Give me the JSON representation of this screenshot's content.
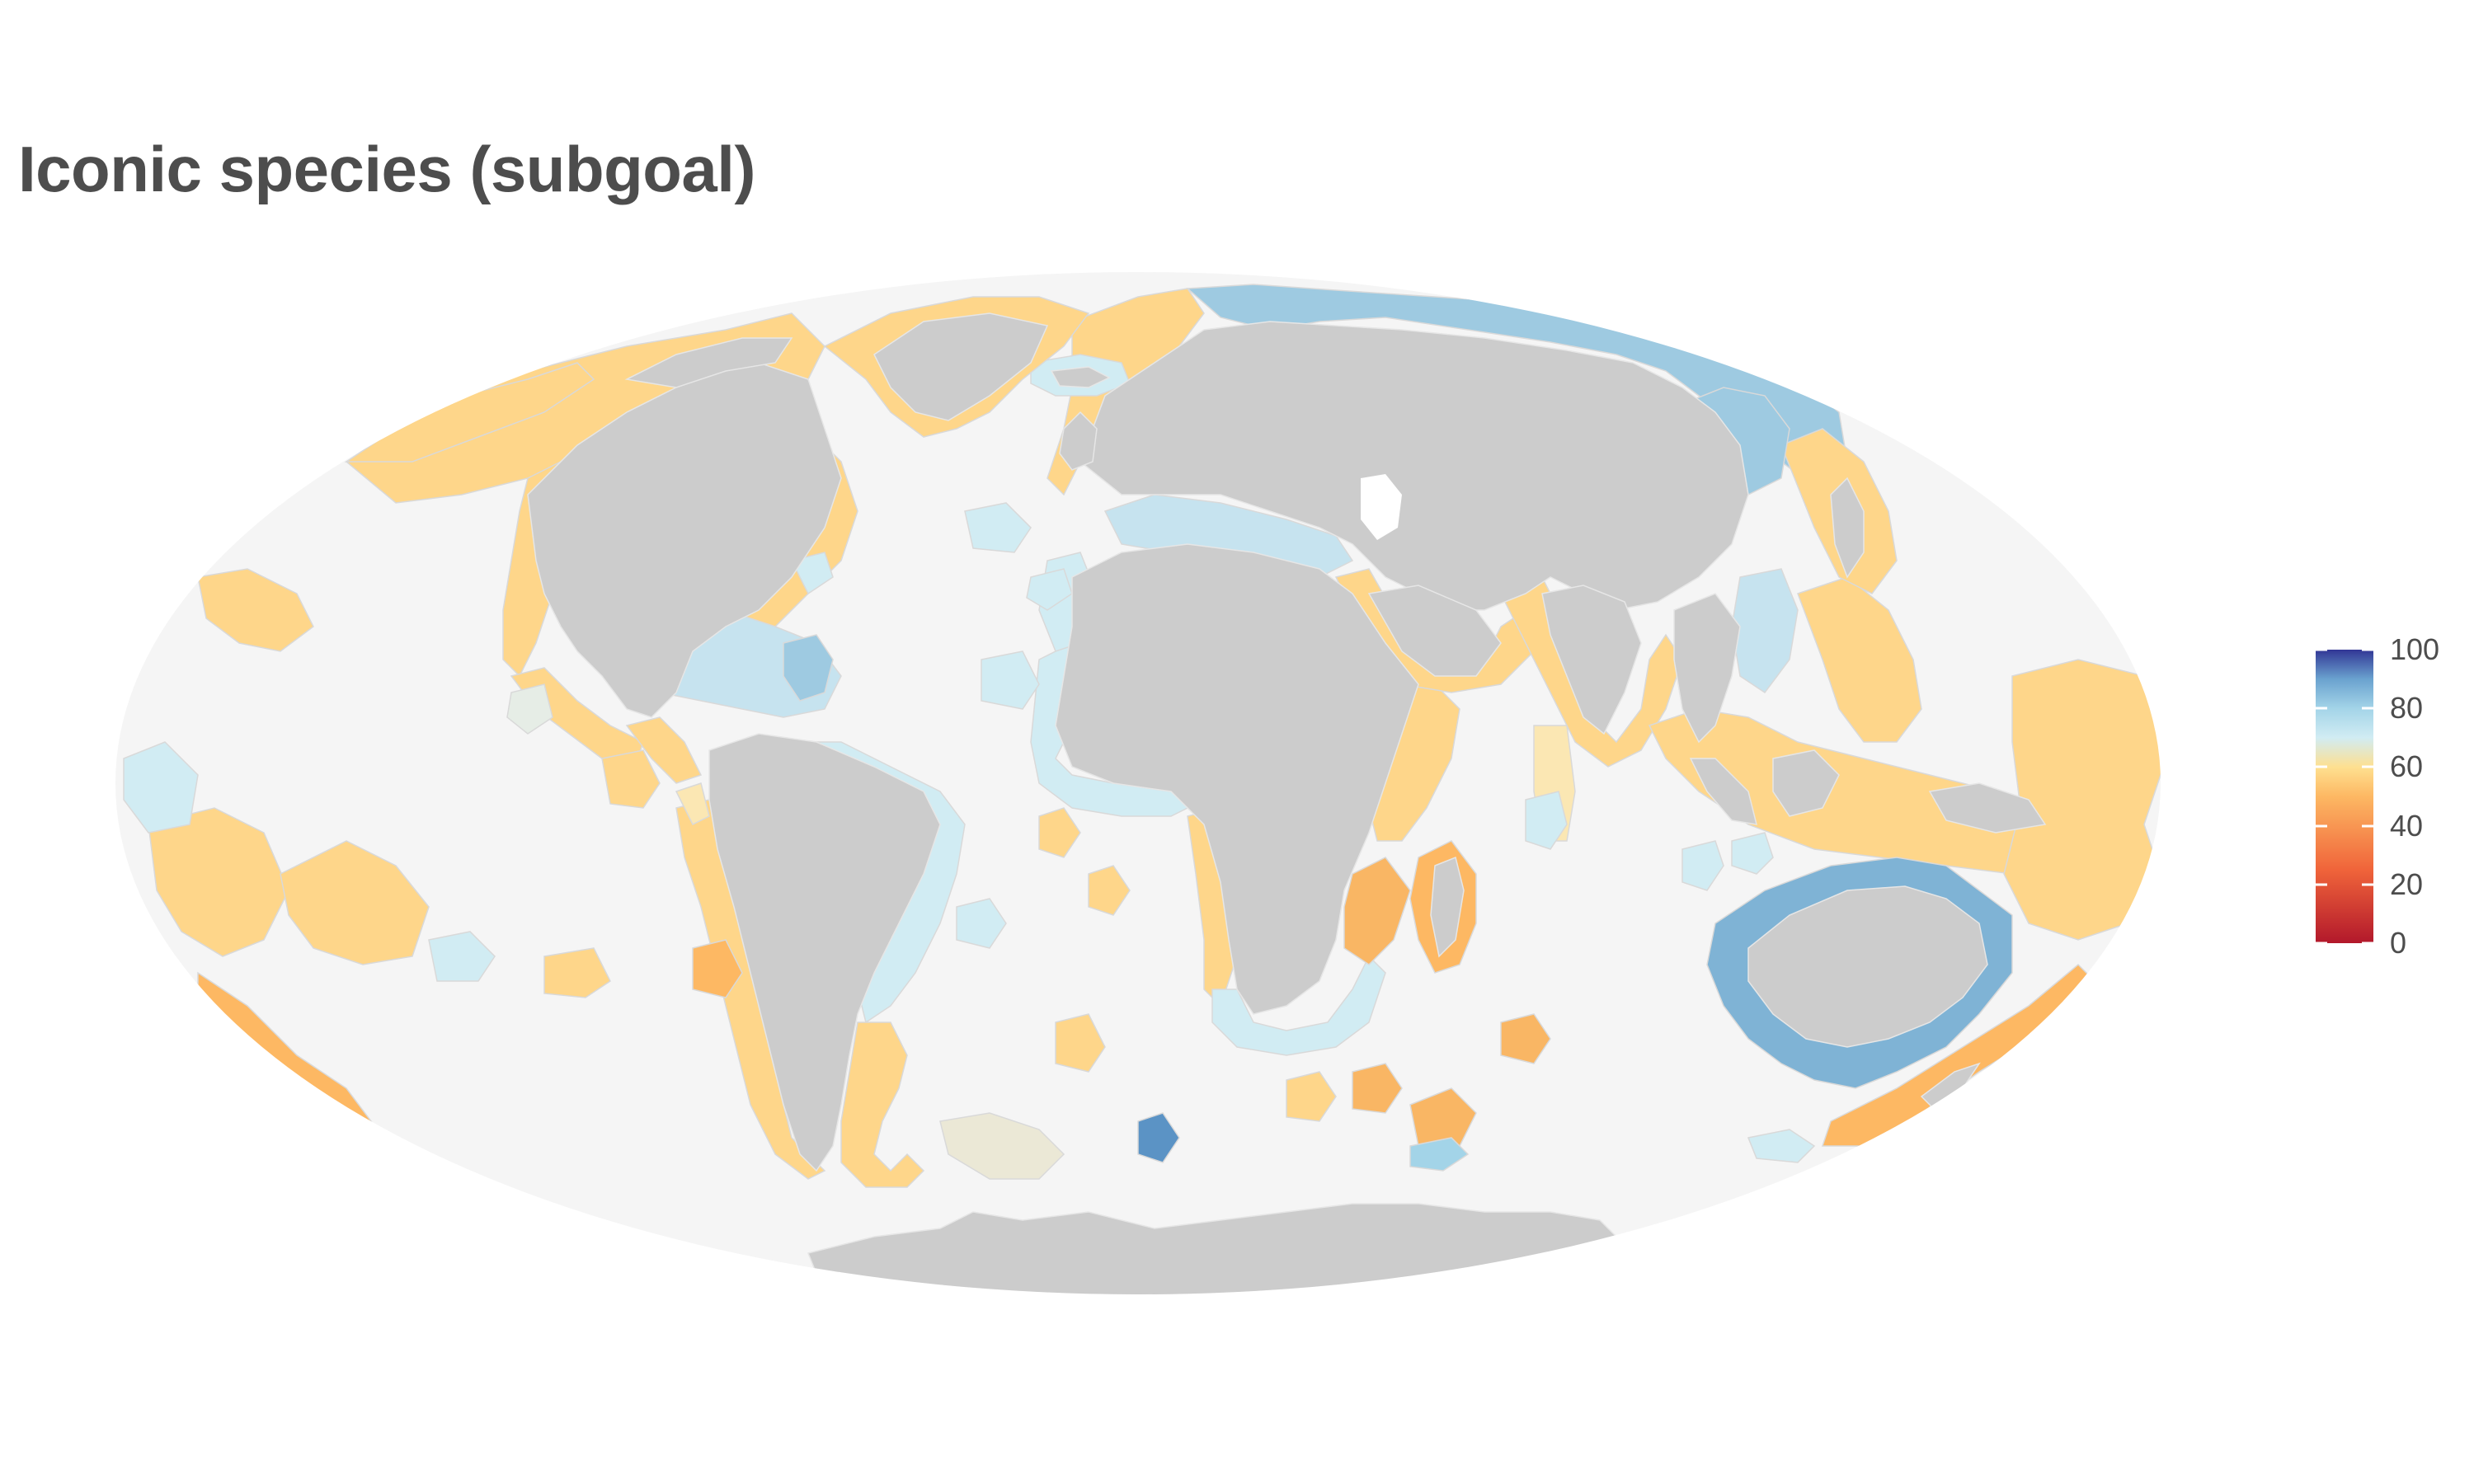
{
  "title": "Iconic species (subgoal)",
  "map": {
    "projection": "mollweide",
    "ocean_color": "#f5f5f5",
    "land_color": "#cccccc",
    "border_color": "#e6e6e6",
    "region_border_color": "#d9d9d9"
  },
  "legend": {
    "title": "",
    "min": 0,
    "max": 100,
    "tick_labels": [
      "100",
      "80",
      "60",
      "40",
      "20",
      "0"
    ],
    "gradient": [
      {
        "value": 0,
        "color": "#b2182b"
      },
      {
        "value": 25,
        "color": "#f0643a"
      },
      {
        "value": 50,
        "color": "#fdb863"
      },
      {
        "value": 60,
        "color": "#fee090"
      },
      {
        "value": 70,
        "color": "#d1ecf3"
      },
      {
        "value": 80,
        "color": "#a3d4e8"
      },
      {
        "value": 90,
        "color": "#6aa2cf"
      },
      {
        "value": 100,
        "color": "#313695"
      }
    ]
  }
}
